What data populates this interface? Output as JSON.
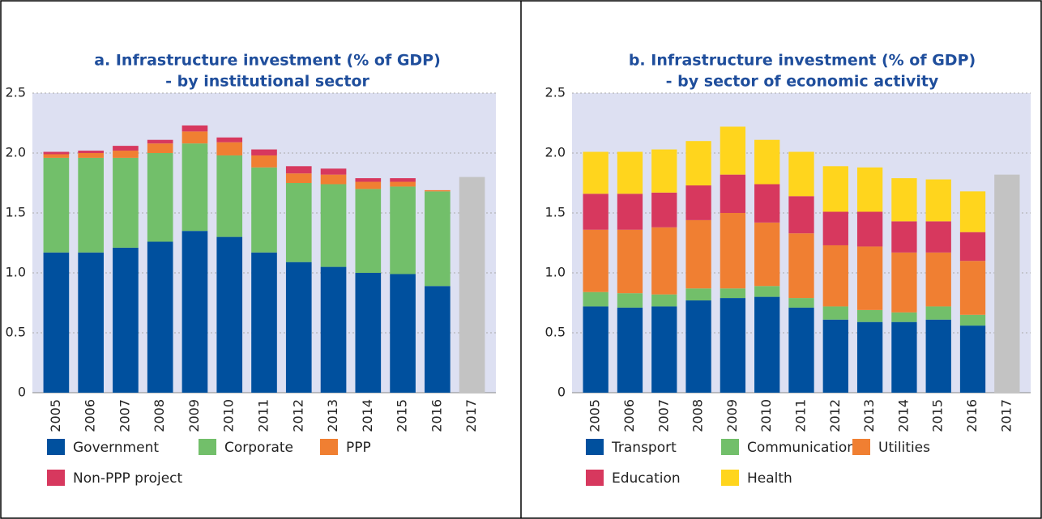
{
  "chart_data": [
    {
      "type": "bar",
      "stacked": true,
      "title": "a. Infrastructure investment (% of GDP)",
      "subtitle": "- by institutional sector",
      "categories": [
        "2005",
        "2006",
        "2007",
        "2008",
        "2009",
        "2010",
        "2011",
        "2012",
        "2013",
        "2014",
        "2015",
        "2016",
        "2017"
      ],
      "series": [
        {
          "name": "Government",
          "color": "#00509e",
          "values": [
            1.17,
            1.17,
            1.21,
            1.26,
            1.35,
            1.3,
            1.17,
            1.09,
            1.05,
            1.0,
            0.99,
            0.89,
            null
          ]
        },
        {
          "name": "Corporate",
          "color": "#72bf6a",
          "values": [
            0.79,
            0.79,
            0.75,
            0.74,
            0.73,
            0.68,
            0.71,
            0.66,
            0.69,
            0.7,
            0.73,
            0.79,
            null
          ]
        },
        {
          "name": "PPP",
          "color": "#f07f32",
          "values": [
            0.03,
            0.04,
            0.06,
            0.08,
            0.1,
            0.11,
            0.1,
            0.08,
            0.08,
            0.06,
            0.04,
            0.01,
            null
          ]
        },
        {
          "name": "Non-PPP project",
          "color": "#d7385e",
          "values": [
            0.02,
            0.02,
            0.04,
            0.03,
            0.05,
            0.04,
            0.05,
            0.06,
            0.05,
            0.03,
            0.03,
            0.0,
            null
          ]
        },
        {
          "color": "#c3c3c3",
          "values": [
            null,
            null,
            null,
            null,
            null,
            null,
            null,
            null,
            null,
            null,
            null,
            null,
            1.8
          ]
        }
      ],
      "ylim": [
        0,
        2.5
      ],
      "yticks": [
        0,
        0.5,
        {
          "value": 1,
          "label": "1.0"
        },
        1.5,
        {
          "value": 2,
          "label": "2.0"
        },
        2.5
      ],
      "grid": true
    },
    {
      "type": "bar",
      "stacked": true,
      "title": "b. Infrastructure investment (% of GDP)",
      "subtitle": "- by sector of economic activity",
      "categories": [
        "2005",
        "2006",
        "2007",
        "2008",
        "2009",
        "2010",
        "2011",
        "2012",
        "2013",
        "2014",
        "2015",
        "2016",
        "2017"
      ],
      "series": [
        {
          "name": "Transport",
          "color": "#00509e",
          "values": [
            0.72,
            0.71,
            0.72,
            0.77,
            0.79,
            0.8,
            0.71,
            0.61,
            0.59,
            0.59,
            0.61,
            0.56,
            null
          ]
        },
        {
          "name": "Communication",
          "color": "#72bf6a",
          "values": [
            0.12,
            0.12,
            0.1,
            0.1,
            0.08,
            0.09,
            0.08,
            0.11,
            0.1,
            0.08,
            0.11,
            0.09,
            null
          ]
        },
        {
          "name": "Utilities",
          "color": "#f07f32",
          "values": [
            0.52,
            0.53,
            0.56,
            0.57,
            0.63,
            0.53,
            0.54,
            0.51,
            0.53,
            0.5,
            0.45,
            0.45,
            null
          ]
        },
        {
          "name": "Education",
          "color": "#d7385e",
          "values": [
            0.3,
            0.3,
            0.29,
            0.29,
            0.32,
            0.32,
            0.31,
            0.28,
            0.29,
            0.26,
            0.26,
            0.24,
            null
          ]
        },
        {
          "name": "Health",
          "color": "#ffd51d",
          "values": [
            0.35,
            0.35,
            0.36,
            0.37,
            0.4,
            0.37,
            0.37,
            0.38,
            0.37,
            0.36,
            0.35,
            0.34,
            null
          ]
        },
        {
          "color": "#c3c3c3",
          "values": [
            null,
            null,
            null,
            null,
            null,
            null,
            null,
            null,
            null,
            null,
            null,
            null,
            1.82
          ]
        }
      ],
      "ylim": [
        0,
        2.5
      ],
      "yticks": [
        0,
        0.5,
        {
          "value": 1,
          "label": "1.0"
        },
        1.5,
        {
          "value": 2,
          "label": "2.0"
        },
        2.5
      ],
      "grid": true
    }
  ]
}
